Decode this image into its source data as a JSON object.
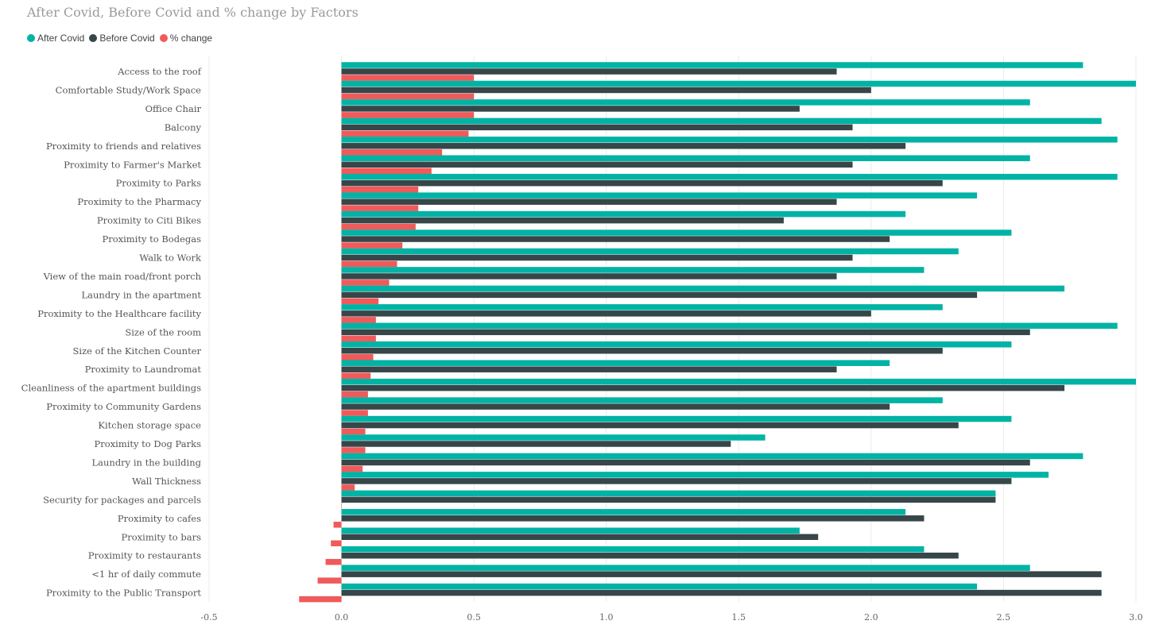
{
  "chart_data": {
    "type": "bar",
    "orientation": "horizontal",
    "title": "After Covid, Before Covid and % change by Factors",
    "categories": [
      "Access to the roof",
      "Comfortable Study/Work Space",
      "Office Chair",
      "Balcony",
      "Proximity to friends and relatives",
      "Proximity to Farmer's Market",
      "Proximity to Parks",
      "Proximity to the Pharmacy",
      "Proximity to Citi Bikes",
      "Proximity to Bodegas",
      "Walk to Work",
      "View of the main road/front porch",
      "Laundry in the apartment",
      "Proximity to the Healthcare facility",
      "Size of the room",
      "Size of the Kitchen Counter",
      "Proximity to Laundromat",
      "Cleanliness of the apartment buildings",
      "Proximity to Community Gardens",
      "Kitchen storage space",
      "Proximity to Dog Parks",
      "Laundry in the building",
      "Wall Thickness",
      "Security for packages and parcels",
      "Proximity to cafes",
      "Proximity to bars",
      "Proximity to restaurants",
      "<1 hr of daily commute",
      "Proximity to the Public Transport"
    ],
    "series": [
      {
        "name": "After Covid",
        "color": "#00b3a4",
        "values": [
          2.8,
          3.0,
          2.6,
          2.87,
          2.93,
          2.6,
          2.93,
          2.4,
          2.13,
          2.53,
          2.33,
          2.2,
          2.73,
          2.27,
          2.93,
          2.53,
          2.07,
          3.0,
          2.27,
          2.53,
          1.6,
          2.8,
          2.67,
          2.47,
          2.13,
          1.73,
          2.2,
          2.6,
          2.4
        ]
      },
      {
        "name": "Before Covid",
        "color": "#374649",
        "values": [
          1.87,
          2.0,
          1.73,
          1.93,
          2.13,
          1.93,
          2.27,
          1.87,
          1.67,
          2.07,
          1.93,
          1.87,
          2.4,
          2.0,
          2.6,
          2.27,
          1.87,
          2.73,
          2.07,
          2.33,
          1.47,
          2.6,
          2.53,
          2.47,
          2.2,
          1.8,
          2.33,
          2.87,
          2.87
        ]
      },
      {
        "name": "% change",
        "color": "#f05a5a",
        "values": [
          0.5,
          0.5,
          0.5,
          0.48,
          0.38,
          0.34,
          0.29,
          0.29,
          0.28,
          0.23,
          0.21,
          0.18,
          0.14,
          0.13,
          0.13,
          0.12,
          0.11,
          0.1,
          0.1,
          0.09,
          0.09,
          0.08,
          0.05,
          0.0,
          -0.03,
          -0.04,
          -0.06,
          -0.09,
          -0.16
        ]
      }
    ],
    "xlim": [
      -0.5,
      3.0
    ],
    "xticks": [
      -0.5,
      0.0,
      0.5,
      1.0,
      1.5,
      2.0,
      2.5,
      3.0
    ],
    "xtick_labels": [
      "-0.5",
      "0.0",
      "0.5",
      "1.0",
      "1.5",
      "2.0",
      "2.5",
      "3.0"
    ],
    "xlabel": "",
    "ylabel": "",
    "grid": "vertical",
    "legend_position": "top-left"
  }
}
